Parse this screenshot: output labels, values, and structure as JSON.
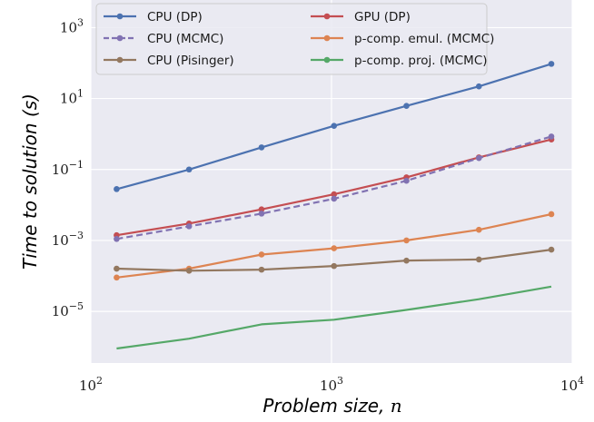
{
  "chart_data": {
    "type": "line",
    "xlabel": "Problem size, ",
    "xlabel_var": "n",
    "ylabel": "Time to solution (s)",
    "x_scale": "log",
    "y_scale": "log",
    "xlim": [
      100,
      10000
    ],
    "ylim": [
      3.5e-07,
      6000
    ],
    "grid": true,
    "legend_position": "top",
    "x_ticks": [
      {
        "value": 100,
        "base": "10",
        "exp": "2"
      },
      {
        "value": 1000,
        "base": "10",
        "exp": "3"
      },
      {
        "value": 10000,
        "base": "10",
        "exp": "4"
      }
    ],
    "y_ticks": [
      {
        "value": 1e-05,
        "base": "10",
        "exp": "−5"
      },
      {
        "value": 0.001,
        "base": "10",
        "exp": "−3"
      },
      {
        "value": 0.1,
        "base": "10",
        "exp": "−1"
      },
      {
        "value": 10,
        "base": "10",
        "exp": "1"
      },
      {
        "value": 1000,
        "base": "10",
        "exp": "3"
      }
    ],
    "x": [
      128,
      256,
      512,
      1024,
      2048,
      4096,
      8192
    ],
    "series": [
      {
        "name": "CPU (DP)",
        "color": "#4c72b0",
        "dash": false,
        "values": [
          0.028,
          0.1,
          0.42,
          1.7,
          6.2,
          22,
          95
        ]
      },
      {
        "name": "GPU (DP)",
        "color": "#c44e52",
        "dash": false,
        "values": [
          0.0014,
          0.003,
          0.0075,
          0.02,
          0.06,
          0.22,
          0.7
        ]
      },
      {
        "name": "CPU (MCMC)",
        "color": "#8172b2",
        "dash": true,
        "values": [
          0.0011,
          0.0025,
          0.0057,
          0.015,
          0.048,
          0.21,
          0.85
        ]
      },
      {
        "name": "p-comp. emul. (MCMC)",
        "color": "#dd8452",
        "dash": false,
        "values": [
          9e-05,
          0.00016,
          0.0004,
          0.0006,
          0.001,
          0.002,
          0.0055
        ]
      },
      {
        "name": "CPU (Pisinger)",
        "color": "#937860",
        "dash": false,
        "values": [
          0.00016,
          0.00014,
          0.00015,
          0.00019,
          0.00027,
          0.00029,
          0.00055
        ]
      },
      {
        "name": "p-comp. proj. (MCMC)",
        "color": "#55a868",
        "dash": false,
        "markers": false,
        "values": [
          9e-07,
          1.7e-06,
          4.3e-06,
          5.8e-06,
          1.1e-05,
          2.2e-05,
          5e-05
        ]
      }
    ],
    "legend": [
      {
        "name": "CPU (DP)",
        "color": "#4c72b0",
        "dash": false
      },
      {
        "name": "GPU (DP)",
        "color": "#c44e52",
        "dash": false
      },
      {
        "name": "CPU (MCMC)",
        "color": "#8172b2",
        "dash": true
      },
      {
        "name": "p-comp. emul. (MCMC)",
        "color": "#dd8452",
        "dash": false
      },
      {
        "name": "CPU (Pisinger)",
        "color": "#937860",
        "dash": false
      },
      {
        "name": "p-comp. proj. (MCMC)",
        "color": "#55a868",
        "dash": false
      }
    ]
  }
}
